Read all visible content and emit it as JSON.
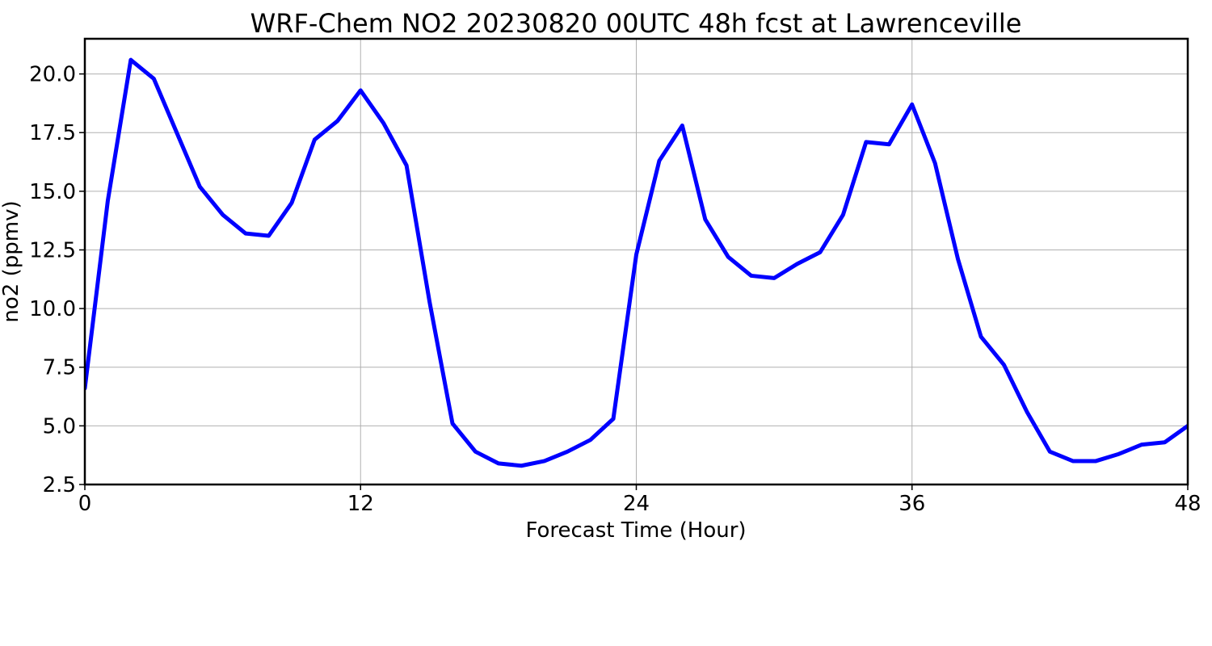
{
  "chart_data": {
    "type": "line",
    "title": "WRF-Chem NO2  20230820 00UTC 48h fcst at Lawrenceville",
    "xlabel": "Forecast Time (Hour)",
    "ylabel": "no2  (ppmv)",
    "xlim": [
      0,
      48
    ],
    "ylim": [
      2.5,
      21.5
    ],
    "xticks": [
      0,
      12,
      24,
      36,
      48
    ],
    "xtick_labels": [
      "0",
      "12",
      "24",
      "36",
      "48"
    ],
    "yticks": [
      2.5,
      5.0,
      7.5,
      10.0,
      12.5,
      15.0,
      17.5,
      20.0
    ],
    "ytick_labels": [
      "2.5",
      "5.0",
      "7.5",
      "10.0",
      "12.5",
      "15.0",
      "17.5",
      "20.0"
    ],
    "grid": true,
    "series": [
      {
        "color": "#0000ff",
        "x": [
          0,
          1,
          2,
          3,
          4,
          5,
          6,
          7,
          8,
          9,
          10,
          11,
          12,
          13,
          14,
          15,
          16,
          17,
          18,
          19,
          20,
          21,
          22,
          23,
          24,
          25,
          26,
          27,
          28,
          29,
          30,
          31,
          32,
          33,
          34,
          35,
          36,
          37,
          38,
          39,
          40,
          41,
          42,
          43,
          44,
          45,
          46,
          47,
          48
        ],
        "values": [
          6.6,
          14.6,
          20.6,
          19.8,
          17.5,
          15.2,
          14.0,
          13.2,
          13.1,
          14.5,
          17.2,
          18.0,
          19.3,
          17.9,
          16.1,
          10.3,
          5.1,
          3.9,
          3.4,
          3.3,
          3.5,
          3.9,
          4.4,
          5.3,
          12.3,
          16.3,
          17.8,
          13.8,
          12.2,
          11.4,
          11.3,
          11.9,
          12.4,
          14.0,
          17.1,
          17.0,
          18.7,
          16.2,
          12.1,
          8.8,
          7.6,
          5.6,
          3.9,
          3.5,
          3.5,
          3.8,
          4.2,
          4.3,
          5.0
        ]
      }
    ]
  }
}
